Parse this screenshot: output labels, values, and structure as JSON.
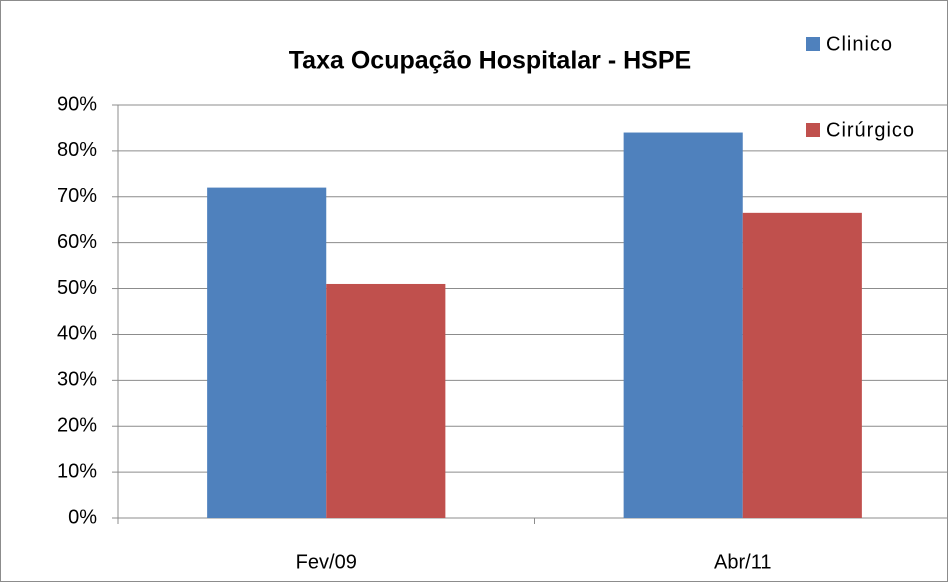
{
  "chart_data": {
    "type": "bar",
    "title": "Taxa Ocupação Hospitalar - HSPE",
    "categories": [
      "Fev/09",
      "Abr/11"
    ],
    "series": [
      {
        "name": "Clinico",
        "color": "#4f81bd",
        "values": [
          72,
          84
        ]
      },
      {
        "name": "Cirúrgico",
        "color": "#c0504d",
        "values": [
          51,
          66.5
        ]
      }
    ],
    "ylim": [
      0,
      90
    ],
    "yticks": [
      {
        "value": 0,
        "label": "0%"
      },
      {
        "value": 10,
        "label": "10%"
      },
      {
        "value": 20,
        "label": "20%"
      },
      {
        "value": 30,
        "label": "30%"
      },
      {
        "value": 40,
        "label": "40%"
      },
      {
        "value": 50,
        "label": "50%"
      },
      {
        "value": 60,
        "label": "60%"
      },
      {
        "value": 70,
        "label": "70%"
      },
      {
        "value": 80,
        "label": "80%"
      },
      {
        "value": 90,
        "label": "90%"
      }
    ],
    "grid": true,
    "legend": "top-right"
  }
}
